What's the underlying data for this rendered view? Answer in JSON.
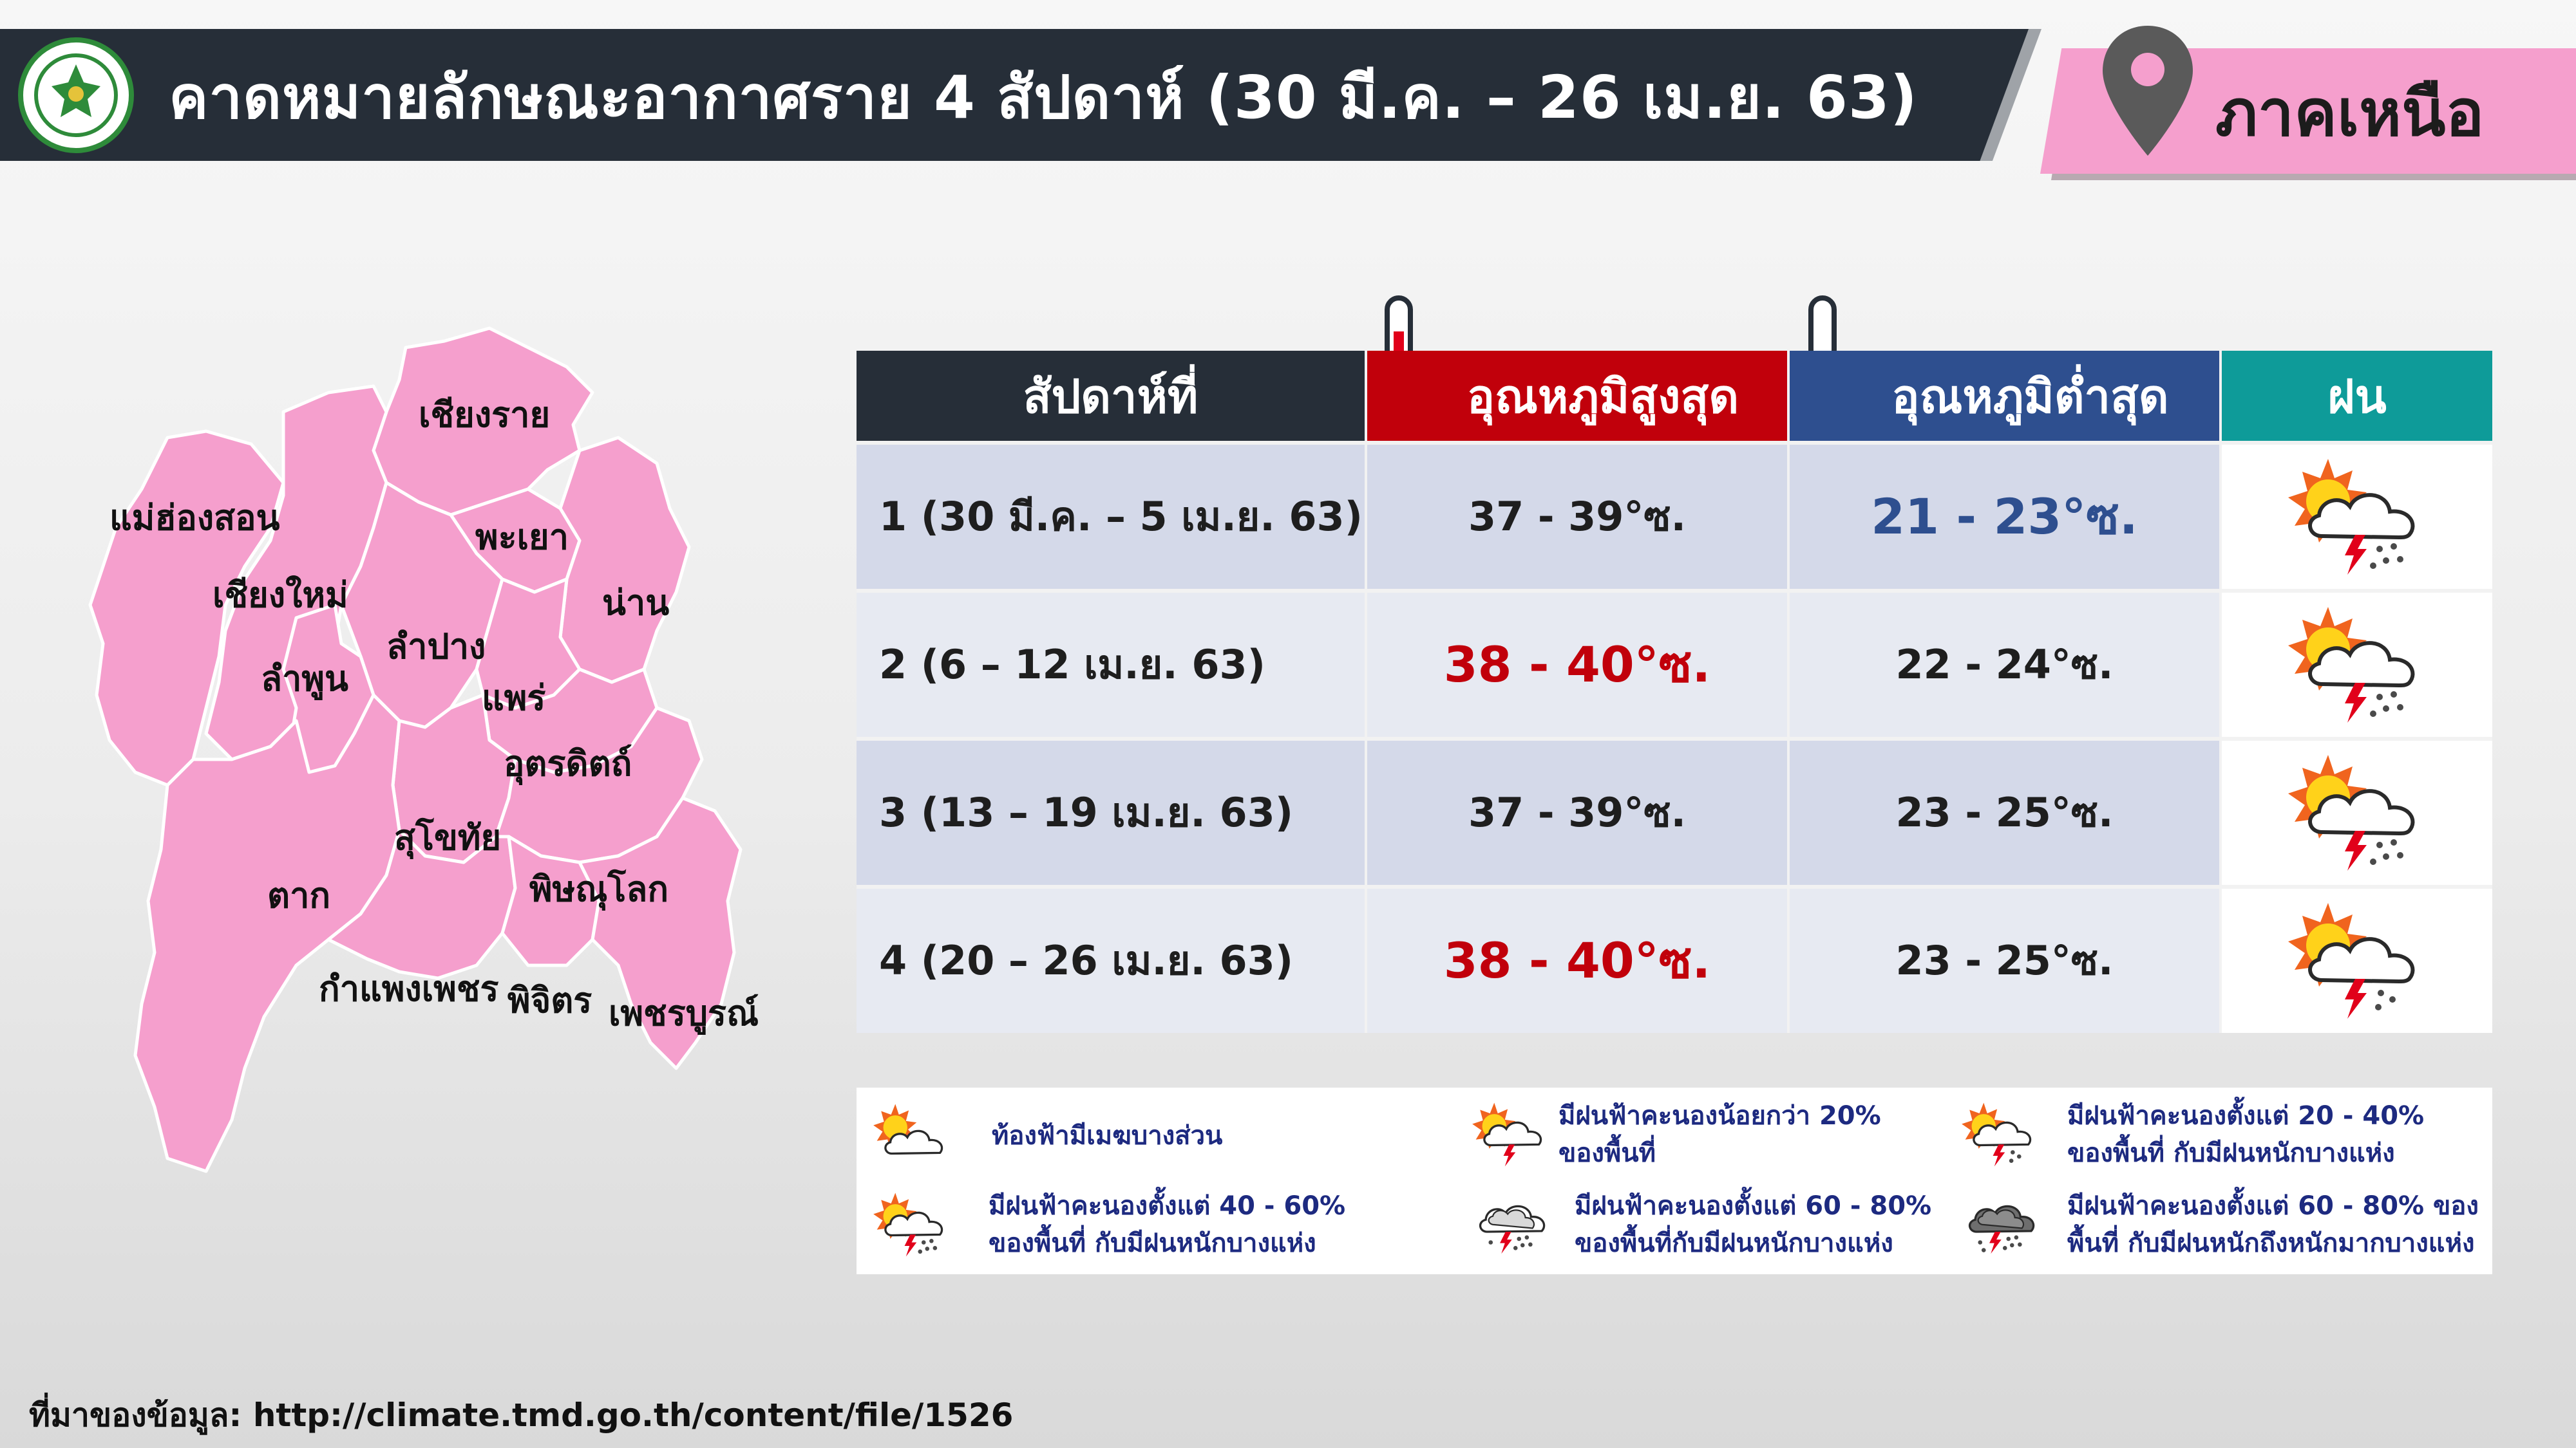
{
  "header": {
    "title": "คาดหมายลักษณะอากาศราย 4 สัปดาห์ (30 มี.ค. – 26 เม.ย. 63)",
    "region": "ภาคเหนือ",
    "accent_color": "#f59fcd",
    "bar_color": "#262e38"
  },
  "map": {
    "fill_color": "#f59fcd",
    "provinces": {
      "chiang_rai": "เชียงราย",
      "mae_hong_son": "แม่ฮ่องสอน",
      "phayao": "พะเยา",
      "chiang_mai": "เชียงใหม่",
      "nan": "น่าน",
      "lampang": "ลำปาง",
      "lamphun": "ลำพูน",
      "phrae": "แพร่",
      "uttaradit": "อุตรดิตถ์",
      "sukhothai": "สุโขทัย",
      "tak": "ตาก",
      "phitsanulok": "พิษณุโลก",
      "kamphaeng_phet": "กำแพงเพชร",
      "phichit": "พิจิตร",
      "phetchabun": "เพชรบูรณ์"
    }
  },
  "table": {
    "headers": {
      "week": "สัปดาห์ที่",
      "max_temp": "อุณหภูมิสูงสุด",
      "min_temp": "อุณหภูมิต่ำสุด",
      "rain": "ฝน"
    },
    "rows": [
      {
        "week": "1 (30 มี.ค. – 5 เม.ย. 63)",
        "max": "37 - 39°ซ.",
        "min": "21 - 23°ซ.",
        "rain_icon": "thunderstorm-40-60-icon"
      },
      {
        "week": "2 (6 – 12 เม.ย. 63)",
        "max": "38 - 40°ซ.",
        "min": "22 - 24°ซ.",
        "rain_icon": "thunderstorm-40-60-icon"
      },
      {
        "week": "3 (13 – 19 เม.ย. 63)",
        "max": "37 - 39°ซ.",
        "min": "23 - 25°ซ.",
        "rain_icon": "thunderstorm-40-60-icon"
      },
      {
        "week": "4 (20 – 26 เม.ย. 63)",
        "max": "38 - 40°ซ.",
        "min": "23 - 25°ซ.",
        "rain_icon": "thunderstorm-20-40-icon"
      }
    ],
    "colors": {
      "hot": "#c1000b",
      "cool": "#2e4f8f",
      "rain_header": "#0e9b99"
    }
  },
  "legend": {
    "items": [
      {
        "icon": "partly-cloudy-icon",
        "lines": [
          "ท้องฟ้ามีเมฆบางส่วน"
        ]
      },
      {
        "icon": "thunderstorm-under-20-icon",
        "lines": [
          "มีฝนฟ้าคะนองน้อยกว่า 20%",
          "ของพื้นที่"
        ]
      },
      {
        "icon": "thunderstorm-20-40-icon",
        "lines": [
          "มีฝนฟ้าคะนองตั้งแต่ 20 - 40%",
          "ของพื้นที่ กับมีฝนหนักบางแห่ง"
        ]
      },
      {
        "icon": "thunderstorm-40-60-icon",
        "lines": [
          "มีฝนฟ้าคะนองตั้งแต่ 40 - 60%",
          "ของพื้นที่ กับมีฝนหนักบางแห่ง"
        ]
      },
      {
        "icon": "thunderstorm-60-80-icon",
        "lines": [
          "มีฝนฟ้าคะนองตั้งแต่ 60 - 80%",
          "ของพื้นที่กับมีฝนหนักบางแห่ง"
        ]
      },
      {
        "icon": "heavy-thunderstorm-60-80-icon",
        "lines": [
          "มีฝนฟ้าคะนองตั้งแต่ 60 - 80% ของ",
          "พื้นที่ กับมีฝนหนักถึงหนักมากบางแห่ง"
        ]
      }
    ]
  },
  "footer": {
    "source": "ที่มาของข้อมูล: http://climate.tmd.go.th/content/file/1526"
  }
}
